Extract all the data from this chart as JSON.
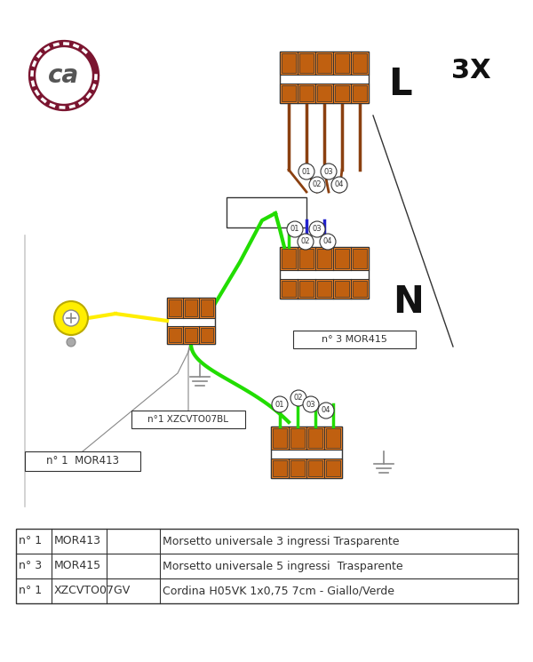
{
  "bg_color": "#ffffff",
  "orange_color": "#F08020",
  "orange_dark": "#C06010",
  "green_color": "#22DD00",
  "blue_color": "#2222CC",
  "yellow_color": "#FFEE00",
  "yellow_green": "#CCDD00",
  "dark_color": "#333333",
  "gray_color": "#888888",
  "logo_rope_color": "#7B1530",
  "logo_text_color": "#555555",
  "brown_color": "#8B4010",
  "figsize": [
    6.0,
    7.45
  ],
  "dpi": 100,
  "label_L": "L",
  "label_N": "N",
  "label_3X": "3X",
  "label_mor413": "n° 1  MOR413",
  "label_mor415": "n° 3 MOR415",
  "label_cable": "n°1 XZCVTO07BL",
  "table_rows": [
    [
      "n° 1",
      "MOR413",
      "Morsetto universale 3 ingressi Trasparente"
    ],
    [
      "n° 3",
      "MOR415",
      "Morsetto universale 5 ingressi  Trasparente"
    ],
    [
      "n° 1",
      "XZCVTO07GV",
      "Cordina H05VK 1x0,75 7cm - Giallo/Verde"
    ]
  ]
}
